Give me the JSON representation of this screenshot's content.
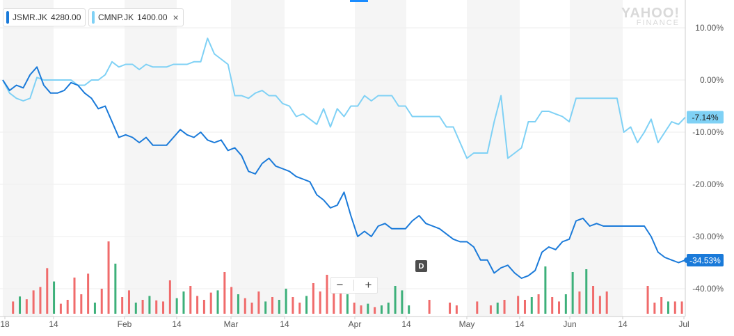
{
  "legend_chips": [
    {
      "symbol": "JSMR.JK",
      "price": "4280.00",
      "color": "#1a7ad9",
      "closable": false
    },
    {
      "symbol": "CMNP.JK",
      "price": "1400.00",
      "color": "#7fd1f5",
      "closable": true,
      "close_glyph": "×"
    }
  ],
  "watermark": {
    "line1": "YAHOO!",
    "line2": "FINANCE"
  },
  "zoom_controls": {
    "minus": "−",
    "plus": "+"
  },
  "event_marker": {
    "label": "D"
  },
  "colors": {
    "up_volume": "#3db07a",
    "down_volume": "#f06b6b",
    "jsmr": "#1a7ad9",
    "cmnp": "#7fd1f5",
    "grid": "#eeeeee",
    "band": "#f5f5f5"
  },
  "chart_data": {
    "type": "line",
    "title": "",
    "y_axis": {
      "unit": "percent",
      "ticks": [
        10,
        0,
        -10,
        -20,
        -30,
        -40
      ],
      "tick_labels": [
        "10.00%",
        "0.00%",
        "-10.00%",
        "-20.00%",
        "-30.00%",
        "-40.00%"
      ],
      "ylim": [
        -44,
        13
      ],
      "position": "right"
    },
    "x_axis": {
      "tick_labels": [
        "18",
        "14",
        "Feb",
        "14",
        "Mar",
        "14",
        "Apr",
        "14",
        "May",
        "14",
        "Jun",
        "14",
        "Jul"
      ],
      "xlim": [
        0,
        100
      ]
    },
    "grid": true,
    "series": [
      {
        "name": "JSMR.JK",
        "last_label": "-34.53%",
        "last_value": -34.53,
        "x": [
          0,
          1,
          2,
          3,
          4,
          5,
          6,
          7,
          8,
          9,
          10,
          11,
          12,
          13,
          14,
          15,
          16,
          17,
          18,
          19,
          20,
          21,
          22,
          23,
          24,
          25,
          26,
          27,
          28,
          29,
          30,
          31,
          32,
          33,
          34,
          35,
          36,
          37,
          38,
          39,
          40,
          41,
          42,
          43,
          44,
          45,
          46,
          47,
          48,
          49,
          50,
          51,
          52,
          53,
          54,
          55,
          56,
          57,
          58,
          59,
          60,
          61,
          62,
          63,
          64,
          65,
          66,
          67,
          68,
          69,
          70,
          71,
          72,
          73,
          74,
          75,
          76,
          77,
          78,
          79,
          80,
          81,
          82,
          83,
          84,
          85,
          86,
          87,
          88,
          89,
          90,
          91,
          92,
          93,
          94,
          95,
          96,
          97,
          98,
          99,
          100
        ],
        "y": [
          0,
          -2,
          -1,
          -1.5,
          1,
          2.5,
          -1,
          -2.5,
          -2.5,
          -2,
          -0.5,
          -1,
          -2.5,
          -3.5,
          -5.5,
          -5,
          -8,
          -11,
          -10.5,
          -11,
          -12,
          -11,
          -12.5,
          -12.5,
          -12.5,
          -11,
          -9.5,
          -10.5,
          -11,
          -10,
          -11.5,
          -12,
          -11.5,
          -13.5,
          -13,
          -14.5,
          -17.5,
          -18,
          -16,
          -15,
          -16.5,
          -17,
          -17.5,
          -18.5,
          -19,
          -19.5,
          -22,
          -23,
          -24.5,
          -24,
          -21.5,
          -26,
          -30,
          -29,
          -30,
          -28,
          -27.5,
          -28.5,
          -28.5,
          -28.5,
          -27,
          -26,
          -27.5,
          -28,
          -28.5,
          -29.5,
          -30.5,
          -31,
          -31,
          -32,
          -34.5,
          -34.5,
          -37,
          -36,
          -35.5,
          -37,
          -38,
          -37.5,
          -36.5,
          -33,
          -32,
          -32.5,
          -31,
          -30.5,
          -27,
          -26.5,
          -28,
          -27.5,
          -28,
          -28,
          -28,
          -28,
          -28,
          -28,
          -28,
          -30,
          -33,
          -34,
          -34.5,
          -35,
          -34.53
        ]
      },
      {
        "name": "CMNP.JK",
        "last_label": "-7.14%",
        "last_value": -7.14,
        "x": [
          0,
          1,
          2,
          3,
          4,
          5,
          6,
          7,
          8,
          9,
          10,
          11,
          12,
          13,
          14,
          15,
          16,
          17,
          18,
          19,
          20,
          21,
          22,
          23,
          24,
          25,
          26,
          27,
          28,
          29,
          30,
          31,
          32,
          33,
          34,
          35,
          36,
          37,
          38,
          39,
          40,
          41,
          42,
          43,
          44,
          45,
          46,
          47,
          48,
          49,
          50,
          51,
          52,
          53,
          54,
          55,
          56,
          57,
          58,
          59,
          60,
          61,
          62,
          63,
          64,
          65,
          66,
          67,
          68,
          69,
          70,
          71,
          72,
          73,
          74,
          75,
          76,
          77,
          78,
          79,
          80,
          81,
          82,
          83,
          84,
          85,
          86,
          87,
          88,
          89,
          90,
          91,
          92,
          93,
          94,
          95,
          96,
          97,
          98,
          99,
          100
        ],
        "y": [
          0,
          -2.5,
          -3.5,
          -4,
          -3.5,
          0.5,
          0,
          0,
          0,
          0,
          0,
          -1,
          -1,
          0,
          0,
          1,
          3.5,
          2.5,
          3,
          3,
          2,
          3,
          2.5,
          2.5,
          2.5,
          3,
          3,
          3,
          3.5,
          3.5,
          8,
          5,
          4,
          3,
          -3,
          -3,
          -3.5,
          -2.5,
          -2,
          -3,
          -3,
          -4.5,
          -5,
          -7,
          -6.5,
          -7.5,
          -8.5,
          -5.5,
          -9,
          -5.5,
          -7,
          -5,
          -5,
          -3,
          -4,
          -3,
          -3,
          -3,
          -5,
          -5,
          -7,
          -7,
          -7,
          -7,
          -7,
          -9,
          -9,
          -12,
          -15,
          -14,
          -14,
          -14,
          -8,
          -3,
          -15,
          -14,
          -13,
          -8,
          -8,
          -6,
          -6,
          -6.5,
          -7,
          -8,
          -3.5,
          -3.5,
          -3.5,
          -3.5,
          -3.5,
          -3.5,
          -3.5,
          -10,
          -9,
          -12,
          -10,
          -7.5,
          -12,
          -10,
          -8,
          -8.5,
          -7.14
        ]
      }
    ],
    "volume_bars": [
      {
        "x": 1.5,
        "v": 2.2,
        "dir": "down"
      },
      {
        "x": 2.5,
        "v": 3.1,
        "dir": "up"
      },
      {
        "x": 3.5,
        "v": 2.6,
        "dir": "down"
      },
      {
        "x": 4.5,
        "v": 4.2,
        "dir": "down"
      },
      {
        "x": 5.5,
        "v": 4.8,
        "dir": "down"
      },
      {
        "x": 6.5,
        "v": 8.2,
        "dir": "down"
      },
      {
        "x": 7.5,
        "v": 5.8,
        "dir": "up"
      },
      {
        "x": 8.5,
        "v": 1.8,
        "dir": "down"
      },
      {
        "x": 9.5,
        "v": 2.5,
        "dir": "down"
      },
      {
        "x": 10.5,
        "v": 6.5,
        "dir": "down"
      },
      {
        "x": 11.5,
        "v": 3.5,
        "dir": "down"
      },
      {
        "x": 12.5,
        "v": 7.2,
        "dir": "down"
      },
      {
        "x": 13.5,
        "v": 2.0,
        "dir": "up"
      },
      {
        "x": 14.5,
        "v": 4.5,
        "dir": "down"
      },
      {
        "x": 15.5,
        "v": 13.0,
        "dir": "down"
      },
      {
        "x": 16.5,
        "v": 9.0,
        "dir": "up"
      },
      {
        "x": 17.5,
        "v": 3.0,
        "dir": "down"
      },
      {
        "x": 18.5,
        "v": 4.2,
        "dir": "down"
      },
      {
        "x": 19.5,
        "v": 2.0,
        "dir": "up"
      },
      {
        "x": 20.5,
        "v": 2.5,
        "dir": "down"
      },
      {
        "x": 21.5,
        "v": 3.2,
        "dir": "up"
      },
      {
        "x": 22.5,
        "v": 2.4,
        "dir": "down"
      },
      {
        "x": 23.5,
        "v": 2.2,
        "dir": "down"
      },
      {
        "x": 24.5,
        "v": 6.0,
        "dir": "down"
      },
      {
        "x": 25.5,
        "v": 2.8,
        "dir": "up"
      },
      {
        "x": 26.5,
        "v": 4.0,
        "dir": "up"
      },
      {
        "x": 27.5,
        "v": 5.0,
        "dir": "down"
      },
      {
        "x": 28.5,
        "v": 3.2,
        "dir": "down"
      },
      {
        "x": 29.5,
        "v": 2.5,
        "dir": "down"
      },
      {
        "x": 30.5,
        "v": 3.8,
        "dir": "down"
      },
      {
        "x": 31.5,
        "v": 4.2,
        "dir": "up"
      },
      {
        "x": 32.5,
        "v": 7.5,
        "dir": "down"
      },
      {
        "x": 33.5,
        "v": 4.8,
        "dir": "down"
      },
      {
        "x": 34.5,
        "v": 3.5,
        "dir": "up"
      },
      {
        "x": 35.5,
        "v": 2.8,
        "dir": "down"
      },
      {
        "x": 36.5,
        "v": 2.0,
        "dir": "down"
      },
      {
        "x": 37.5,
        "v": 4.0,
        "dir": "down"
      },
      {
        "x": 38.5,
        "v": 2.2,
        "dir": "up"
      },
      {
        "x": 39.5,
        "v": 3.0,
        "dir": "down"
      },
      {
        "x": 40.5,
        "v": 2.5,
        "dir": "up"
      },
      {
        "x": 41.5,
        "v": 4.5,
        "dir": "up"
      },
      {
        "x": 42.5,
        "v": 3.0,
        "dir": "down"
      },
      {
        "x": 43.5,
        "v": 2.0,
        "dir": "down"
      },
      {
        "x": 44.5,
        "v": 3.2,
        "dir": "up"
      },
      {
        "x": 45.5,
        "v": 5.5,
        "dir": "down"
      },
      {
        "x": 46.5,
        "v": 4.0,
        "dir": "down"
      },
      {
        "x": 47.5,
        "v": 7.0,
        "dir": "down"
      },
      {
        "x": 48.5,
        "v": 6.0,
        "dir": "down"
      },
      {
        "x": 49.5,
        "v": 5.5,
        "dir": "down"
      },
      {
        "x": 50.5,
        "v": 3.5,
        "dir": "up"
      },
      {
        "x": 51.5,
        "v": 2.0,
        "dir": "down"
      },
      {
        "x": 52.5,
        "v": 1.5,
        "dir": "down"
      },
      {
        "x": 53.5,
        "v": 1.8,
        "dir": "up"
      },
      {
        "x": 54.5,
        "v": 1.2,
        "dir": "down"
      },
      {
        "x": 55.5,
        "v": 1.5,
        "dir": "up"
      },
      {
        "x": 56.5,
        "v": 2.0,
        "dir": "up"
      },
      {
        "x": 57.5,
        "v": 5.0,
        "dir": "up"
      },
      {
        "x": 58.5,
        "v": 4.2,
        "dir": "up"
      },
      {
        "x": 59.5,
        "v": 1.5,
        "dir": "up"
      },
      {
        "x": 62.5,
        "v": 2.5,
        "dir": "down"
      },
      {
        "x": 65.5,
        "v": 2.0,
        "dir": "down"
      },
      {
        "x": 66.5,
        "v": 1.5,
        "dir": "down"
      },
      {
        "x": 69.5,
        "v": 2.2,
        "dir": "down"
      },
      {
        "x": 71.5,
        "v": 1.5,
        "dir": "down"
      },
      {
        "x": 72.5,
        "v": 2.0,
        "dir": "up"
      },
      {
        "x": 73.5,
        "v": 2.5,
        "dir": "down"
      },
      {
        "x": 75.5,
        "v": 3.2,
        "dir": "down"
      },
      {
        "x": 76.5,
        "v": 2.5,
        "dir": "down"
      },
      {
        "x": 77.5,
        "v": 3.0,
        "dir": "up"
      },
      {
        "x": 78.5,
        "v": 3.5,
        "dir": "down"
      },
      {
        "x": 79.5,
        "v": 8.5,
        "dir": "up"
      },
      {
        "x": 80.5,
        "v": 3.0,
        "dir": "down"
      },
      {
        "x": 81.5,
        "v": 2.2,
        "dir": "down"
      },
      {
        "x": 82.5,
        "v": 3.5,
        "dir": "up"
      },
      {
        "x": 83.5,
        "v": 7.5,
        "dir": "up"
      },
      {
        "x": 84.5,
        "v": 4.0,
        "dir": "down"
      },
      {
        "x": 85.5,
        "v": 8.0,
        "dir": "up"
      },
      {
        "x": 86.5,
        "v": 5.0,
        "dir": "down"
      },
      {
        "x": 87.5,
        "v": 3.2,
        "dir": "down"
      },
      {
        "x": 88.5,
        "v": 4.0,
        "dir": "down"
      },
      {
        "x": 94.5,
        "v": 5.0,
        "dir": "down"
      },
      {
        "x": 95.5,
        "v": 2.0,
        "dir": "down"
      },
      {
        "x": 96.5,
        "v": 3.0,
        "dir": "down"
      },
      {
        "x": 97.5,
        "v": 2.2,
        "dir": "up"
      },
      {
        "x": 98.5,
        "v": 2.2,
        "dir": "down"
      },
      {
        "x": 99.5,
        "v": 2.2,
        "dir": "down"
      }
    ]
  }
}
